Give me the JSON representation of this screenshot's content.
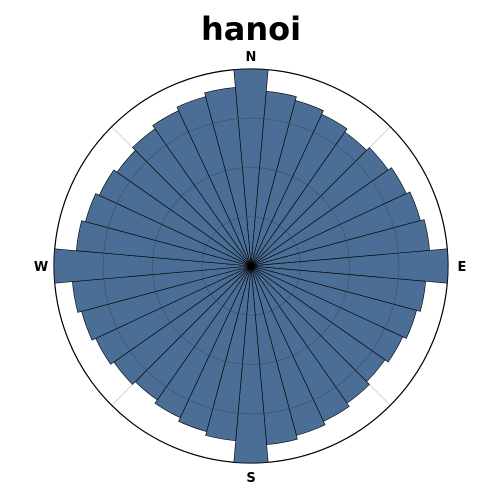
{
  "chart_data": {
    "type": "polar-bar",
    "title": "hanoi",
    "direction_labels": {
      "north": "N",
      "east": "E",
      "south": "S",
      "west": "W"
    },
    "bar_count": 36,
    "bar_color": "#4a6e96",
    "bar_edge_color": "#000000",
    "gridline_color": "#3a3a3a",
    "axis_outline_color": "#000000",
    "radial_max": 1.0,
    "radial_grid": [
      0.25,
      0.5,
      0.75
    ],
    "angular_grid_deg": [
      0,
      45,
      90,
      135,
      180,
      225,
      270,
      315
    ],
    "bars": [
      {
        "angle_deg": 0,
        "value": 1.0
      },
      {
        "angle_deg": 10,
        "value": 0.89
      },
      {
        "angle_deg": 20,
        "value": 0.87
      },
      {
        "angle_deg": 30,
        "value": 0.85
      },
      {
        "angle_deg": 40,
        "value": 0.83
      },
      {
        "angle_deg": 50,
        "value": 0.85
      },
      {
        "angle_deg": 60,
        "value": 0.87
      },
      {
        "angle_deg": 70,
        "value": 0.89
      },
      {
        "angle_deg": 80,
        "value": 0.91
      },
      {
        "angle_deg": 90,
        "value": 1.0
      },
      {
        "angle_deg": 100,
        "value": 0.89
      },
      {
        "angle_deg": 110,
        "value": 0.87
      },
      {
        "angle_deg": 120,
        "value": 0.85
      },
      {
        "angle_deg": 130,
        "value": 0.83
      },
      {
        "angle_deg": 140,
        "value": 0.85
      },
      {
        "angle_deg": 150,
        "value": 0.87
      },
      {
        "angle_deg": 160,
        "value": 0.89
      },
      {
        "angle_deg": 170,
        "value": 0.91
      },
      {
        "angle_deg": 180,
        "value": 1.0
      },
      {
        "angle_deg": 190,
        "value": 0.89
      },
      {
        "angle_deg": 200,
        "value": 0.87
      },
      {
        "angle_deg": 210,
        "value": 0.85
      },
      {
        "angle_deg": 220,
        "value": 0.83
      },
      {
        "angle_deg": 230,
        "value": 0.85
      },
      {
        "angle_deg": 240,
        "value": 0.87
      },
      {
        "angle_deg": 250,
        "value": 0.89
      },
      {
        "angle_deg": 260,
        "value": 0.91
      },
      {
        "angle_deg": 270,
        "value": 1.0
      },
      {
        "angle_deg": 280,
        "value": 0.89
      },
      {
        "angle_deg": 290,
        "value": 0.87
      },
      {
        "angle_deg": 300,
        "value": 0.85
      },
      {
        "angle_deg": 310,
        "value": 0.83
      },
      {
        "angle_deg": 320,
        "value": 0.85
      },
      {
        "angle_deg": 330,
        "value": 0.87
      },
      {
        "angle_deg": 340,
        "value": 0.89
      },
      {
        "angle_deg": 350,
        "value": 0.91
      }
    ]
  }
}
